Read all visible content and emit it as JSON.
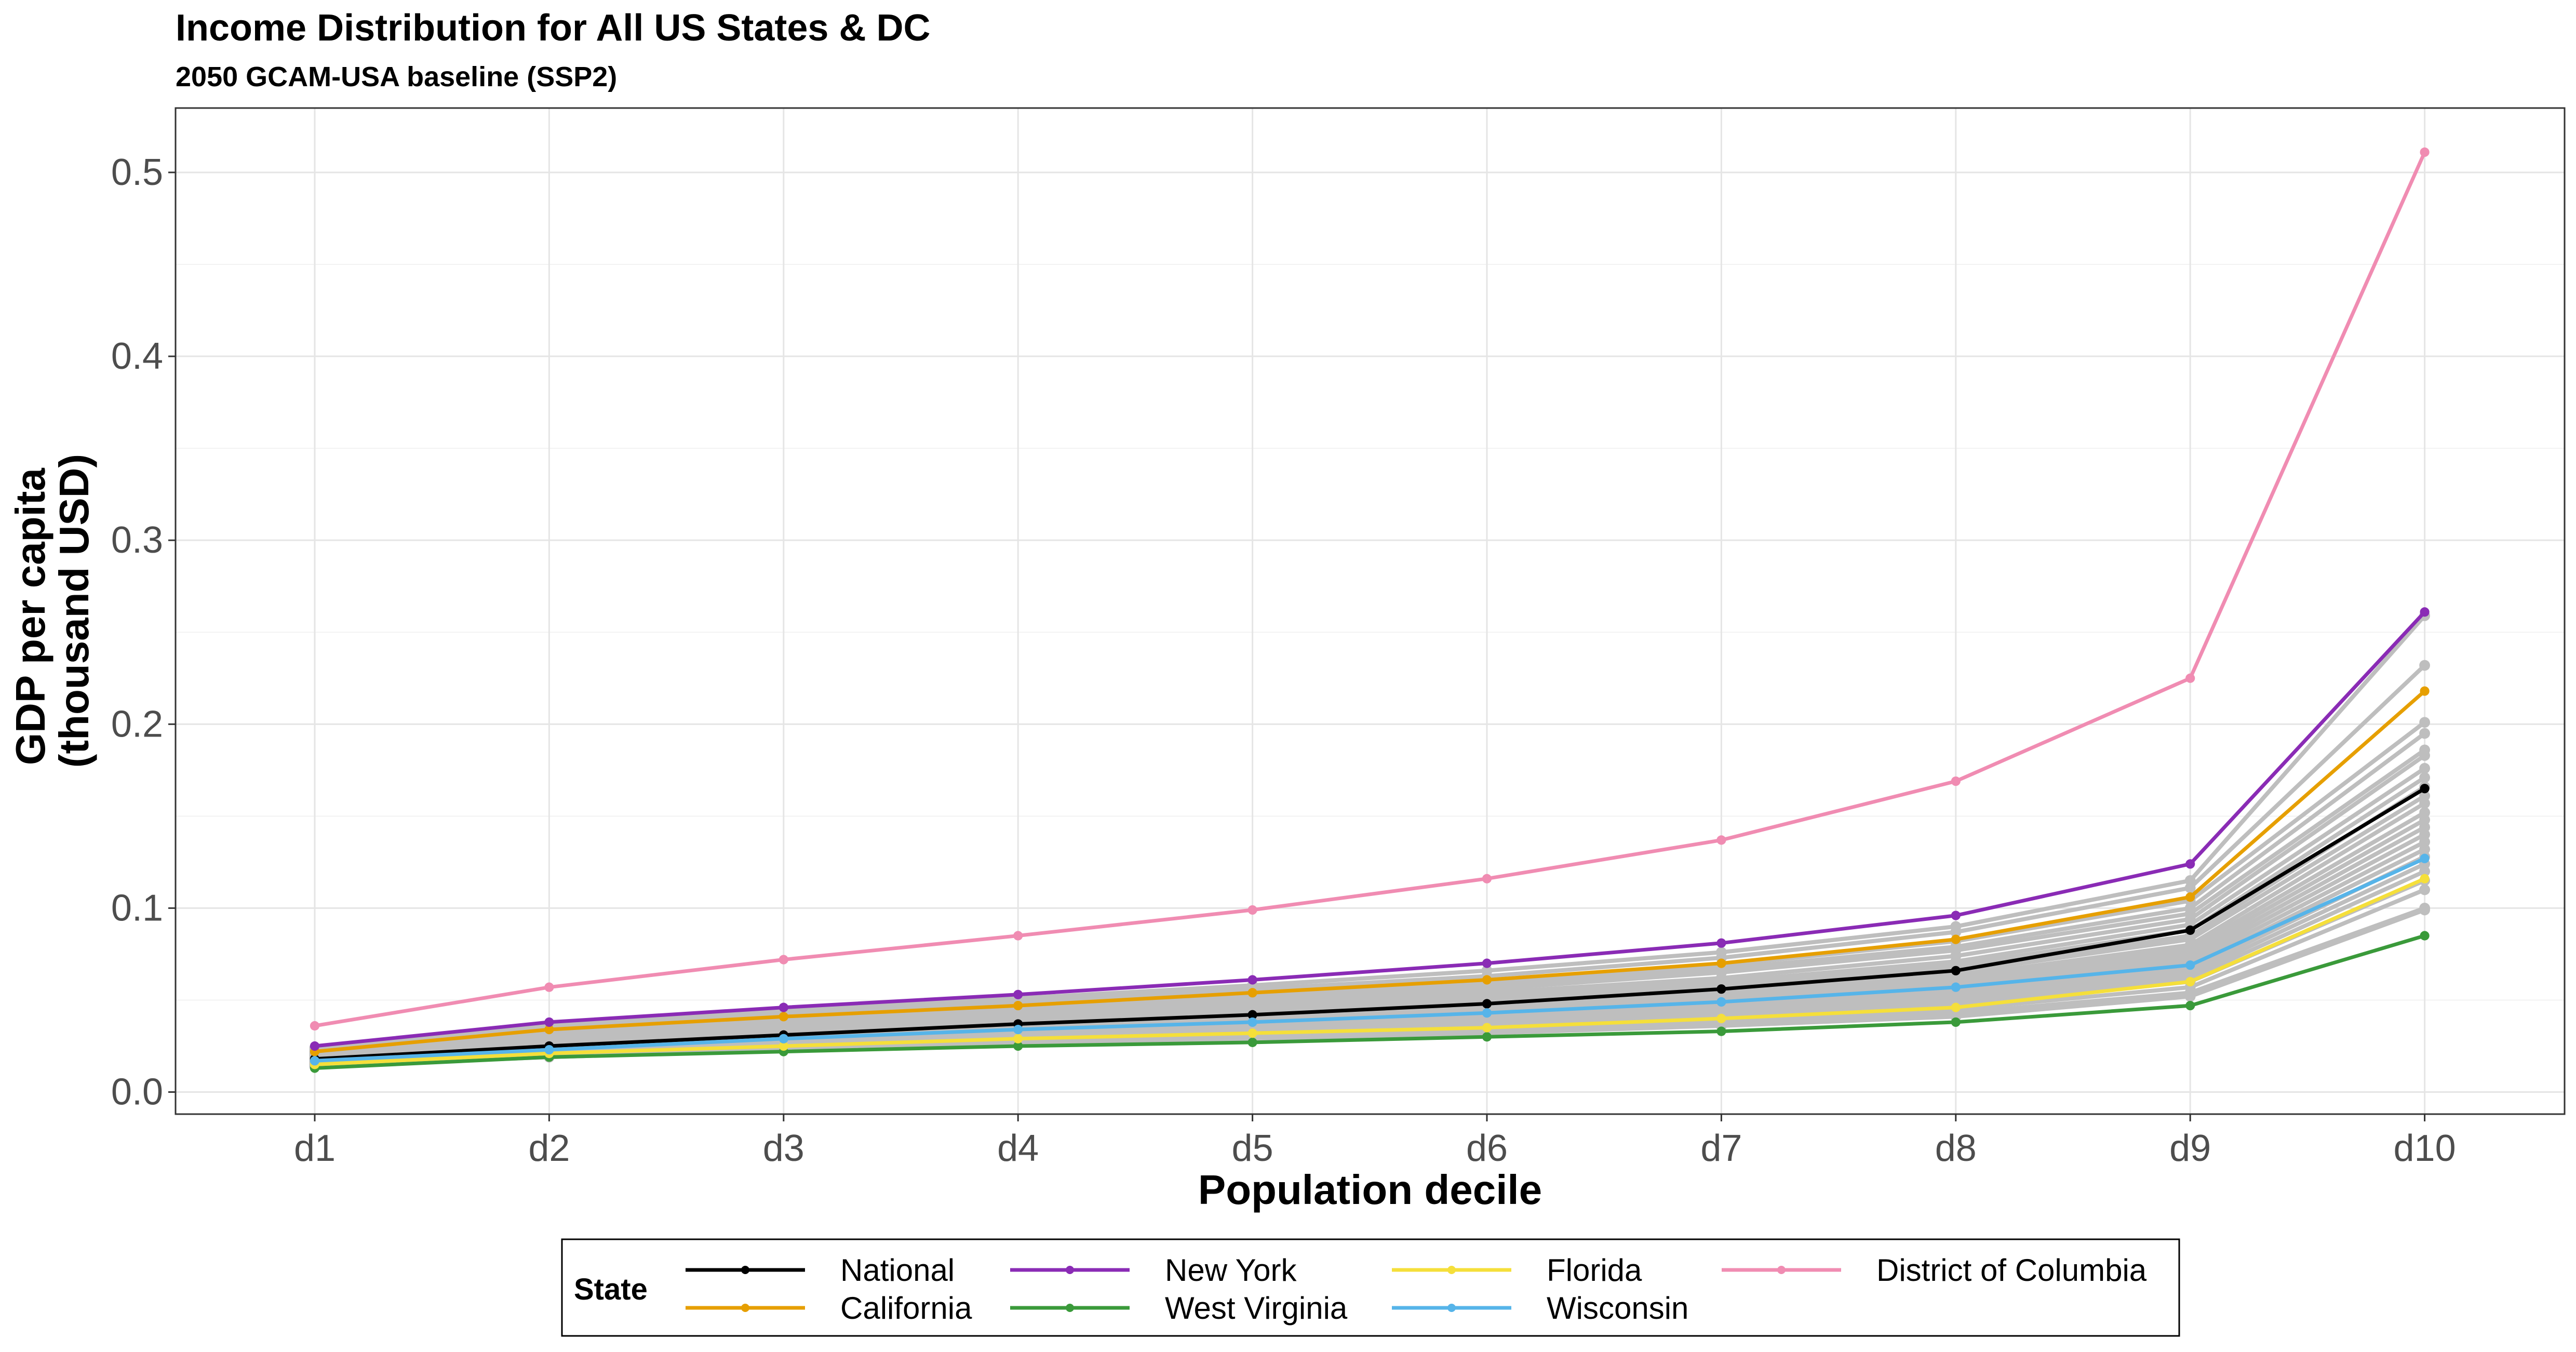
{
  "chart_data": {
    "type": "line",
    "title": "Income Distribution for All US States & DC",
    "subtitle": "2050 GCAM-USA baseline (SSP2)",
    "xlabel": "Population decile",
    "ylabel_line1": "GDP per capita",
    "ylabel_line2": "(thousand USD)",
    "categories": [
      "d1",
      "d2",
      "d3",
      "d4",
      "d5",
      "d6",
      "d7",
      "d8",
      "d9",
      "d10"
    ],
    "ylim": [
      -0.012,
      0.535
    ],
    "yticks": [
      0.0,
      0.1,
      0.2,
      0.3,
      0.4,
      0.5
    ],
    "ytick_labels": [
      "0.0",
      "0.1",
      "0.2",
      "0.3",
      "0.4",
      "0.5"
    ],
    "grid": true,
    "legend_title": "State",
    "legend_placement": "bottom",
    "series": [
      {
        "name": "National",
        "color": "#000000",
        "values": [
          0.018,
          0.025,
          0.031,
          0.037,
          0.042,
          0.048,
          0.056,
          0.066,
          0.088,
          0.165
        ]
      },
      {
        "name": "California",
        "color": "#E69F00",
        "values": [
          0.022,
          0.034,
          0.041,
          0.047,
          0.054,
          0.061,
          0.07,
          0.083,
          0.106,
          0.218
        ]
      },
      {
        "name": "New York",
        "color": "#8A2BB5",
        "values": [
          0.025,
          0.038,
          0.046,
          0.053,
          0.061,
          0.07,
          0.081,
          0.096,
          0.124,
          0.261
        ]
      },
      {
        "name": "West Virginia",
        "color": "#3A9A3A",
        "values": [
          0.013,
          0.019,
          0.022,
          0.025,
          0.027,
          0.03,
          0.033,
          0.038,
          0.047,
          0.085
        ]
      },
      {
        "name": "Florida",
        "color": "#F5DF3A",
        "values": [
          0.015,
          0.021,
          0.025,
          0.029,
          0.032,
          0.035,
          0.04,
          0.046,
          0.06,
          0.116
        ]
      },
      {
        "name": "Wisconsin",
        "color": "#56B4E9",
        "values": [
          0.017,
          0.023,
          0.029,
          0.034,
          0.038,
          0.043,
          0.049,
          0.057,
          0.069,
          0.127
        ]
      },
      {
        "name": "District of Columbia",
        "color": "#F08CB2",
        "values": [
          0.036,
          0.057,
          0.072,
          0.085,
          0.099,
          0.116,
          0.137,
          0.169,
          0.225,
          0.511
        ]
      }
    ],
    "background_color": "#BEBEBE",
    "background_series": [
      [
        0.024,
        0.036,
        0.044,
        0.051,
        0.058,
        0.066,
        0.076,
        0.09,
        0.115,
        0.259
      ],
      [
        0.023,
        0.035,
        0.043,
        0.049,
        0.056,
        0.063,
        0.073,
        0.087,
        0.111,
        0.232
      ],
      [
        0.022,
        0.034,
        0.041,
        0.047,
        0.053,
        0.06,
        0.069,
        0.082,
        0.104,
        0.201
      ],
      [
        0.021,
        0.032,
        0.039,
        0.045,
        0.051,
        0.058,
        0.067,
        0.079,
        0.1,
        0.195
      ],
      [
        0.021,
        0.031,
        0.038,
        0.044,
        0.05,
        0.056,
        0.065,
        0.077,
        0.097,
        0.186
      ],
      [
        0.02,
        0.03,
        0.037,
        0.042,
        0.048,
        0.054,
        0.062,
        0.074,
        0.094,
        0.183
      ],
      [
        0.02,
        0.029,
        0.036,
        0.041,
        0.046,
        0.052,
        0.06,
        0.071,
        0.091,
        0.176
      ],
      [
        0.019,
        0.028,
        0.035,
        0.04,
        0.045,
        0.051,
        0.058,
        0.069,
        0.088,
        0.171
      ],
      [
        0.019,
        0.027,
        0.034,
        0.039,
        0.044,
        0.049,
        0.056,
        0.067,
        0.085,
        0.166
      ],
      [
        0.018,
        0.026,
        0.033,
        0.038,
        0.043,
        0.048,
        0.055,
        0.065,
        0.083,
        0.161
      ],
      [
        0.018,
        0.026,
        0.032,
        0.037,
        0.042,
        0.047,
        0.053,
        0.063,
        0.08,
        0.157
      ],
      [
        0.018,
        0.025,
        0.031,
        0.036,
        0.041,
        0.046,
        0.052,
        0.061,
        0.078,
        0.152
      ],
      [
        0.017,
        0.024,
        0.03,
        0.035,
        0.04,
        0.045,
        0.051,
        0.06,
        0.076,
        0.148
      ],
      [
        0.017,
        0.024,
        0.03,
        0.034,
        0.039,
        0.044,
        0.05,
        0.058,
        0.074,
        0.144
      ],
      [
        0.017,
        0.023,
        0.029,
        0.033,
        0.038,
        0.043,
        0.048,
        0.057,
        0.072,
        0.14
      ],
      [
        0.016,
        0.023,
        0.028,
        0.033,
        0.037,
        0.042,
        0.047,
        0.055,
        0.07,
        0.136
      ],
      [
        0.016,
        0.022,
        0.028,
        0.032,
        0.036,
        0.041,
        0.046,
        0.054,
        0.068,
        0.132
      ],
      [
        0.016,
        0.022,
        0.027,
        0.031,
        0.035,
        0.04,
        0.045,
        0.052,
        0.066,
        0.128
      ],
      [
        0.015,
        0.021,
        0.026,
        0.03,
        0.034,
        0.038,
        0.043,
        0.05,
        0.064,
        0.124
      ],
      [
        0.015,
        0.021,
        0.026,
        0.03,
        0.033,
        0.037,
        0.042,
        0.049,
        0.062,
        0.12
      ],
      [
        0.015,
        0.02,
        0.025,
        0.029,
        0.032,
        0.036,
        0.041,
        0.047,
        0.06,
        0.115
      ],
      [
        0.014,
        0.02,
        0.024,
        0.028,
        0.031,
        0.035,
        0.039,
        0.045,
        0.057,
        0.11
      ],
      [
        0.014,
        0.019,
        0.023,
        0.027,
        0.03,
        0.033,
        0.037,
        0.043,
        0.054,
        0.1
      ],
      [
        0.014,
        0.019,
        0.023,
        0.026,
        0.029,
        0.032,
        0.036,
        0.041,
        0.052,
        0.099
      ]
    ]
  }
}
